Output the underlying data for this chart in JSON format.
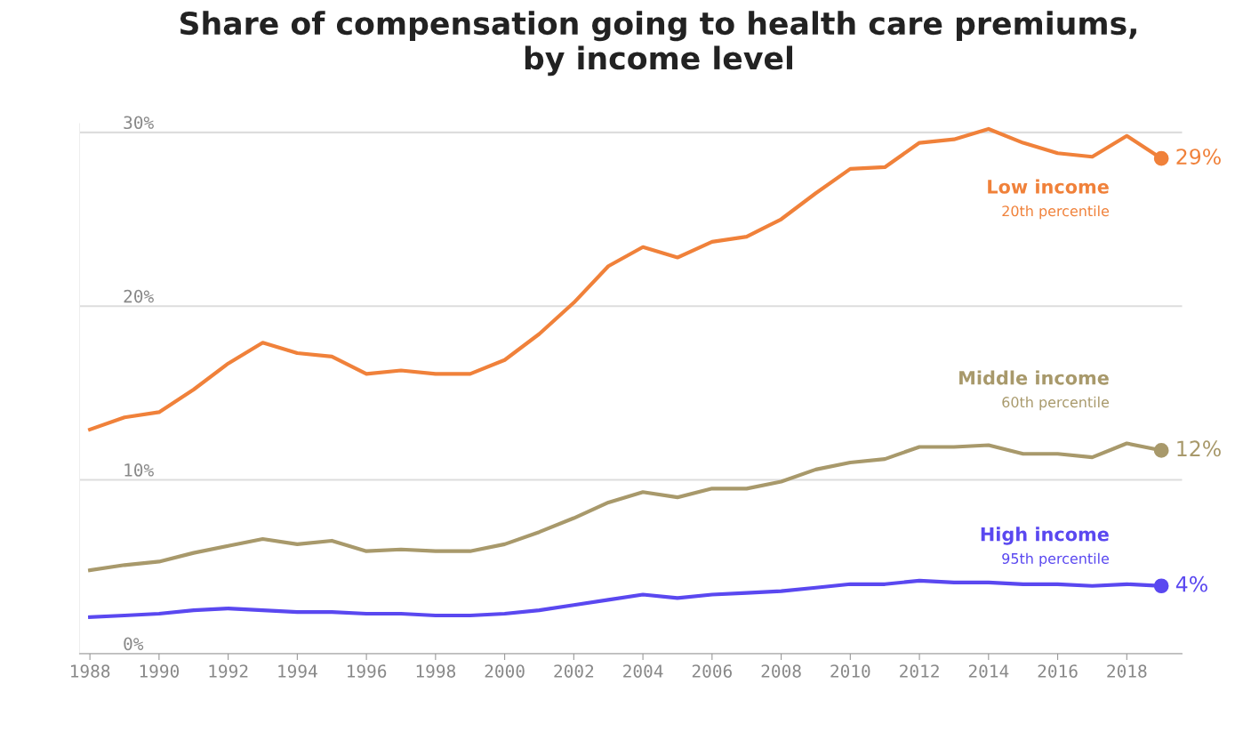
{
  "chart_data": {
    "type": "line",
    "title": "Share of compensation going to health care premiums,\nby income level",
    "x": [
      1988,
      1989,
      1990,
      1991,
      1992,
      1993,
      1994,
      1995,
      1996,
      1997,
      1998,
      1999,
      2000,
      2001,
      2002,
      2003,
      2004,
      2005,
      2006,
      2007,
      2008,
      2009,
      2010,
      2011,
      2012,
      2013,
      2014,
      2015,
      2016,
      2017,
      2018,
      2019
    ],
    "series": [
      {
        "name": "Low income",
        "color": "#f0813a",
        "values": [
          12.9,
          13.6,
          13.9,
          15.2,
          16.7,
          17.9,
          17.3,
          17.1,
          16.1,
          16.3,
          16.1,
          16.1,
          16.9,
          18.4,
          20.2,
          22.3,
          23.4,
          22.8,
          23.7,
          24.0,
          25.0,
          26.5,
          27.9,
          28.0,
          29.4,
          29.6,
          30.2,
          29.4,
          28.8,
          28.6,
          29.8,
          28.5
        ],
        "value_labels": [
          null,
          null,
          null,
          null,
          null,
          null,
          null,
          null,
          null,
          null,
          null,
          null,
          null,
          null,
          null,
          null,
          null,
          null,
          null,
          null,
          null,
          null,
          null,
          null,
          null,
          null,
          null,
          null,
          null,
          null,
          null,
          "29%"
        ]
      },
      {
        "name": "Middle income",
        "color": "#a8996b",
        "values": [
          4.8,
          5.1,
          5.3,
          5.8,
          6.2,
          6.6,
          6.3,
          6.5,
          5.9,
          6.0,
          5.9,
          5.9,
          6.3,
          7.0,
          7.8,
          8.7,
          9.3,
          9.0,
          9.5,
          9.5,
          9.9,
          10.6,
          11.0,
          11.2,
          11.9,
          11.9,
          12.0,
          11.5,
          11.5,
          11.3,
          12.1,
          11.7
        ],
        "value_labels": [
          null,
          null,
          null,
          null,
          null,
          null,
          null,
          null,
          null,
          null,
          null,
          null,
          null,
          null,
          null,
          null,
          null,
          null,
          null,
          null,
          null,
          null,
          null,
          null,
          null,
          null,
          null,
          null,
          null,
          null,
          null,
          "12%"
        ]
      },
      {
        "name": "High income",
        "color": "#5a48f0",
        "values": [
          2.1,
          2.2,
          2.3,
          2.5,
          2.6,
          2.5,
          2.4,
          2.4,
          2.3,
          2.3,
          2.2,
          2.2,
          2.3,
          2.5,
          2.8,
          3.1,
          3.4,
          3.2,
          3.4,
          3.5,
          3.6,
          3.8,
          4.0,
          4.0,
          4.2,
          4.1,
          4.1,
          4.0,
          4.0,
          3.9,
          4.0,
          3.9
        ],
        "value_labels": [
          null,
          null,
          null,
          null,
          null,
          null,
          null,
          null,
          null,
          null,
          null,
          null,
          null,
          null,
          null,
          null,
          null,
          null,
          null,
          null,
          null,
          null,
          null,
          null,
          null,
          null,
          null,
          null,
          null,
          null,
          null,
          "4%"
        ]
      }
    ],
    "annotations": [
      "20th percentile",
      "60th percentile",
      "95th percentile"
    ],
    "xlim": [
      1987.7,
      2019.6
    ],
    "xticks": [
      1988,
      1990,
      1992,
      1994,
      1996,
      1998,
      2000,
      2002,
      2004,
      2006,
      2008,
      2010,
      2012,
      2014,
      2016,
      2018
    ],
    "ylim": [
      0,
      30.5
    ],
    "yticks": [
      {
        "value": 0,
        "label": "0%"
      },
      {
        "value": 10,
        "label": "10%"
      },
      {
        "value": 20,
        "label": "20%"
      },
      {
        "value": 30,
        "label": "30%"
      }
    ],
    "grid": "y",
    "legend": false,
    "line_style": "solid",
    "marker": "none"
  }
}
